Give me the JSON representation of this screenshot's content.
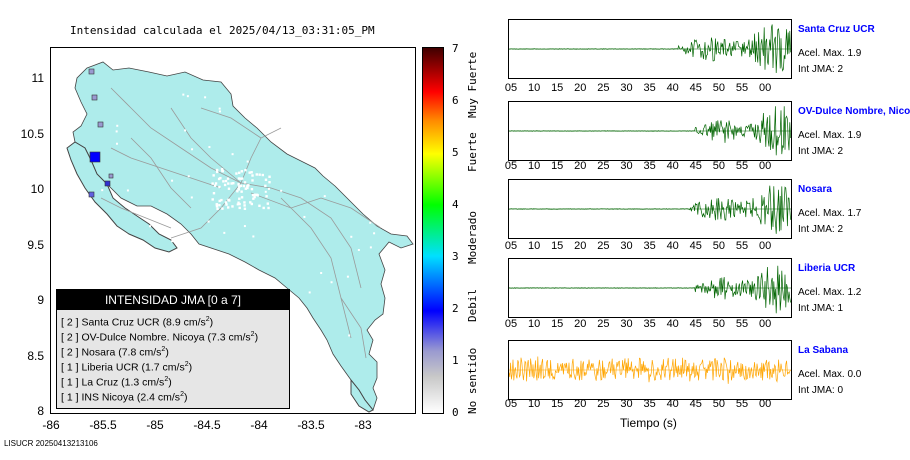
{
  "map": {
    "title": "Intensidad calculada el 2025/04/13_03:31:05_PM",
    "land_color": "#aeeceb",
    "y_ticks": [
      "11",
      "10.5",
      "10",
      "9.5",
      "9",
      "8.5",
      "8"
    ],
    "x_ticks": [
      "-86",
      "-85.5",
      "-85",
      "-84.5",
      "-84",
      "-83.5",
      "-83"
    ],
    "legend": {
      "title": "INTENSIDAD JMA [0 a 7]",
      "rows": [
        {
          "level": "[ 2 ]",
          "name": "Santa Cruz UCR",
          "accel": "(8.9 cm/s",
          "sup": "2",
          "close": ")"
        },
        {
          "level": "[ 2 ]",
          "name": "OV-Dulce Nombre. Nicoya",
          "accel": "(7.3 cm/s",
          "sup": "2",
          "close": ")"
        },
        {
          "level": "[ 2 ]",
          "name": "Nosara",
          "accel": "(7.8 cm/s",
          "sup": "2",
          "close": ")"
        },
        {
          "level": "[ 1 ]",
          "name": "Liberia UCR",
          "accel": "(1.7 cm/s",
          "sup": "2",
          "close": ")"
        },
        {
          "level": "[ 1 ]",
          "name": "La Cruz",
          "accel": "(1.3 cm/s",
          "sup": "2",
          "close": ")"
        },
        {
          "level": "[ 1 ]",
          "name": "INS Nicoya",
          "accel": "(2.4 cm/s",
          "sup": "2",
          "close": ")"
        }
      ]
    }
  },
  "colorbar": {
    "numbers": [
      "7",
      "6",
      "5",
      "4",
      "3",
      "2",
      "1",
      "0"
    ],
    "labels": {
      "muy_fuerte": "Muy Fuerte",
      "fuerte": "Fuerte",
      "moderado": "Moderado",
      "debil": "Debil",
      "no_sentido": "No sentido"
    }
  },
  "waveforms": {
    "time_ticks": [
      "05",
      "10",
      "15",
      "20",
      "25",
      "30",
      "35",
      "40",
      "45",
      "50",
      "55",
      "00"
    ],
    "xlabel": "Tiempo (s)",
    "stations": [
      {
        "name": "Santa Cruz UCR",
        "accel": "Acel. Max. 1.9",
        "int": "Int JMA: 2",
        "color": "#006400",
        "onset": 0.6
      },
      {
        "name": "OV-Dulce Nombre, Nico",
        "accel": "Acel. Max. 1.9",
        "int": "Int JMA: 2",
        "color": "#006400",
        "onset": 0.66
      },
      {
        "name": "Nosara",
        "accel": "Acel. Max. 1.7",
        "int": "Int JMA: 2",
        "color": "#006400",
        "onset": 0.64
      },
      {
        "name": "Liberia UCR",
        "accel": "Acel. Max. 1.2",
        "int": "Int JMA: 1",
        "color": "#006400",
        "onset": 0.66
      },
      {
        "name": "La Sabana",
        "accel": "Acel. Max. 0.0",
        "int": "Int JMA: 0",
        "color": "#ffa500",
        "onset": 0
      }
    ]
  },
  "footer": "LISUCR 20250413213106"
}
